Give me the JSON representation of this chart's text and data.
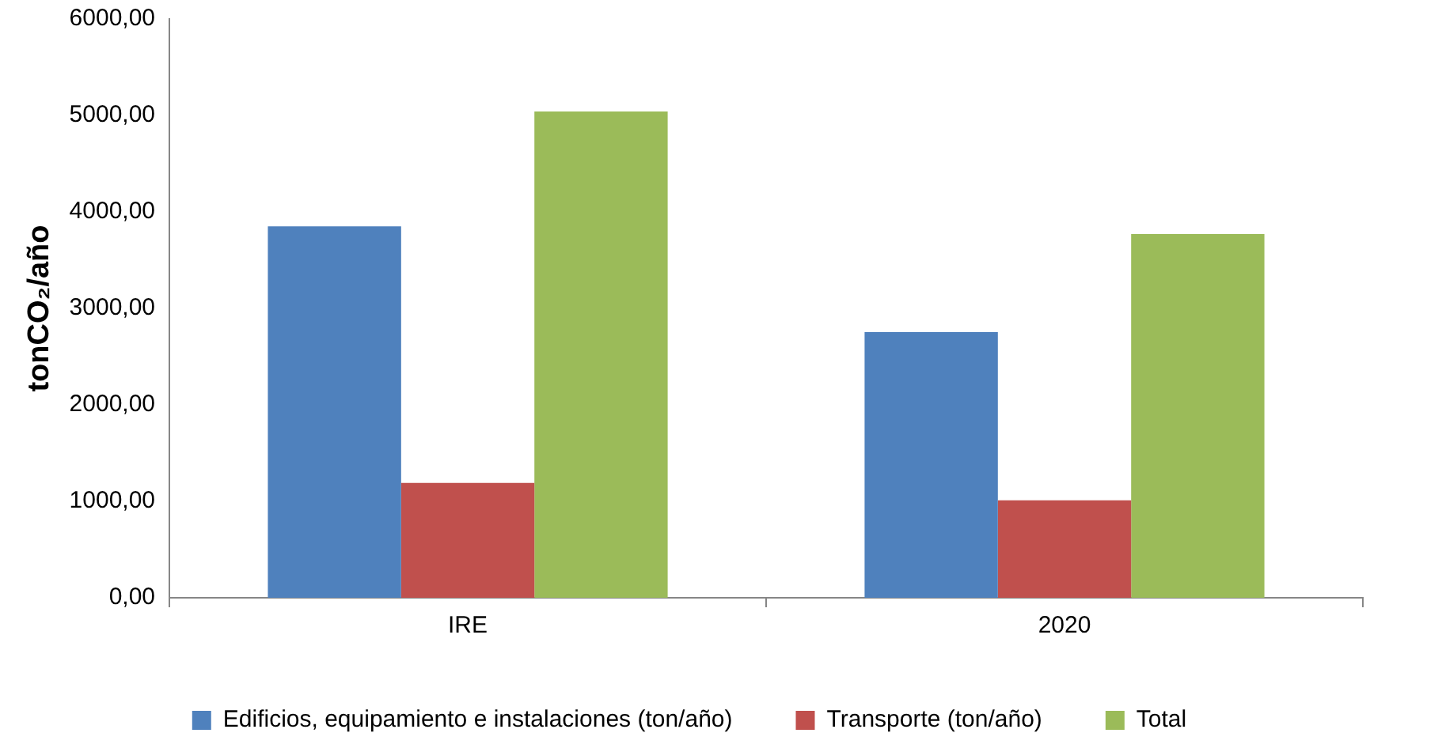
{
  "chart_data": {
    "type": "bar",
    "ylabel": "tonCO₂/año",
    "categories": [
      "IRE",
      "2020"
    ],
    "series": [
      {
        "name": "Edificios, equipamiento e instalaciones (ton/año)",
        "color": "#4f81bd",
        "values": [
          3850,
          2755
        ]
      },
      {
        "name": "Transporte (ton/año)",
        "color": "#c0504d",
        "values": [
          1190,
          1010
        ]
      },
      {
        "name": "Total",
        "color": "#9bbb59",
        "values": [
          5040,
          3770
        ]
      }
    ],
    "ylim": [
      0,
      6000
    ],
    "yticks": [
      {
        "value": 0,
        "label": "0,00"
      },
      {
        "value": 1000,
        "label": "1000,00"
      },
      {
        "value": 2000,
        "label": "2000,00"
      },
      {
        "value": 3000,
        "label": "3000,00"
      },
      {
        "value": 4000,
        "label": "4000,00"
      },
      {
        "value": 5000,
        "label": "5000,00"
      },
      {
        "value": 6000,
        "label": "6000,00"
      }
    ],
    "grid": false,
    "legend": "bottom"
  }
}
